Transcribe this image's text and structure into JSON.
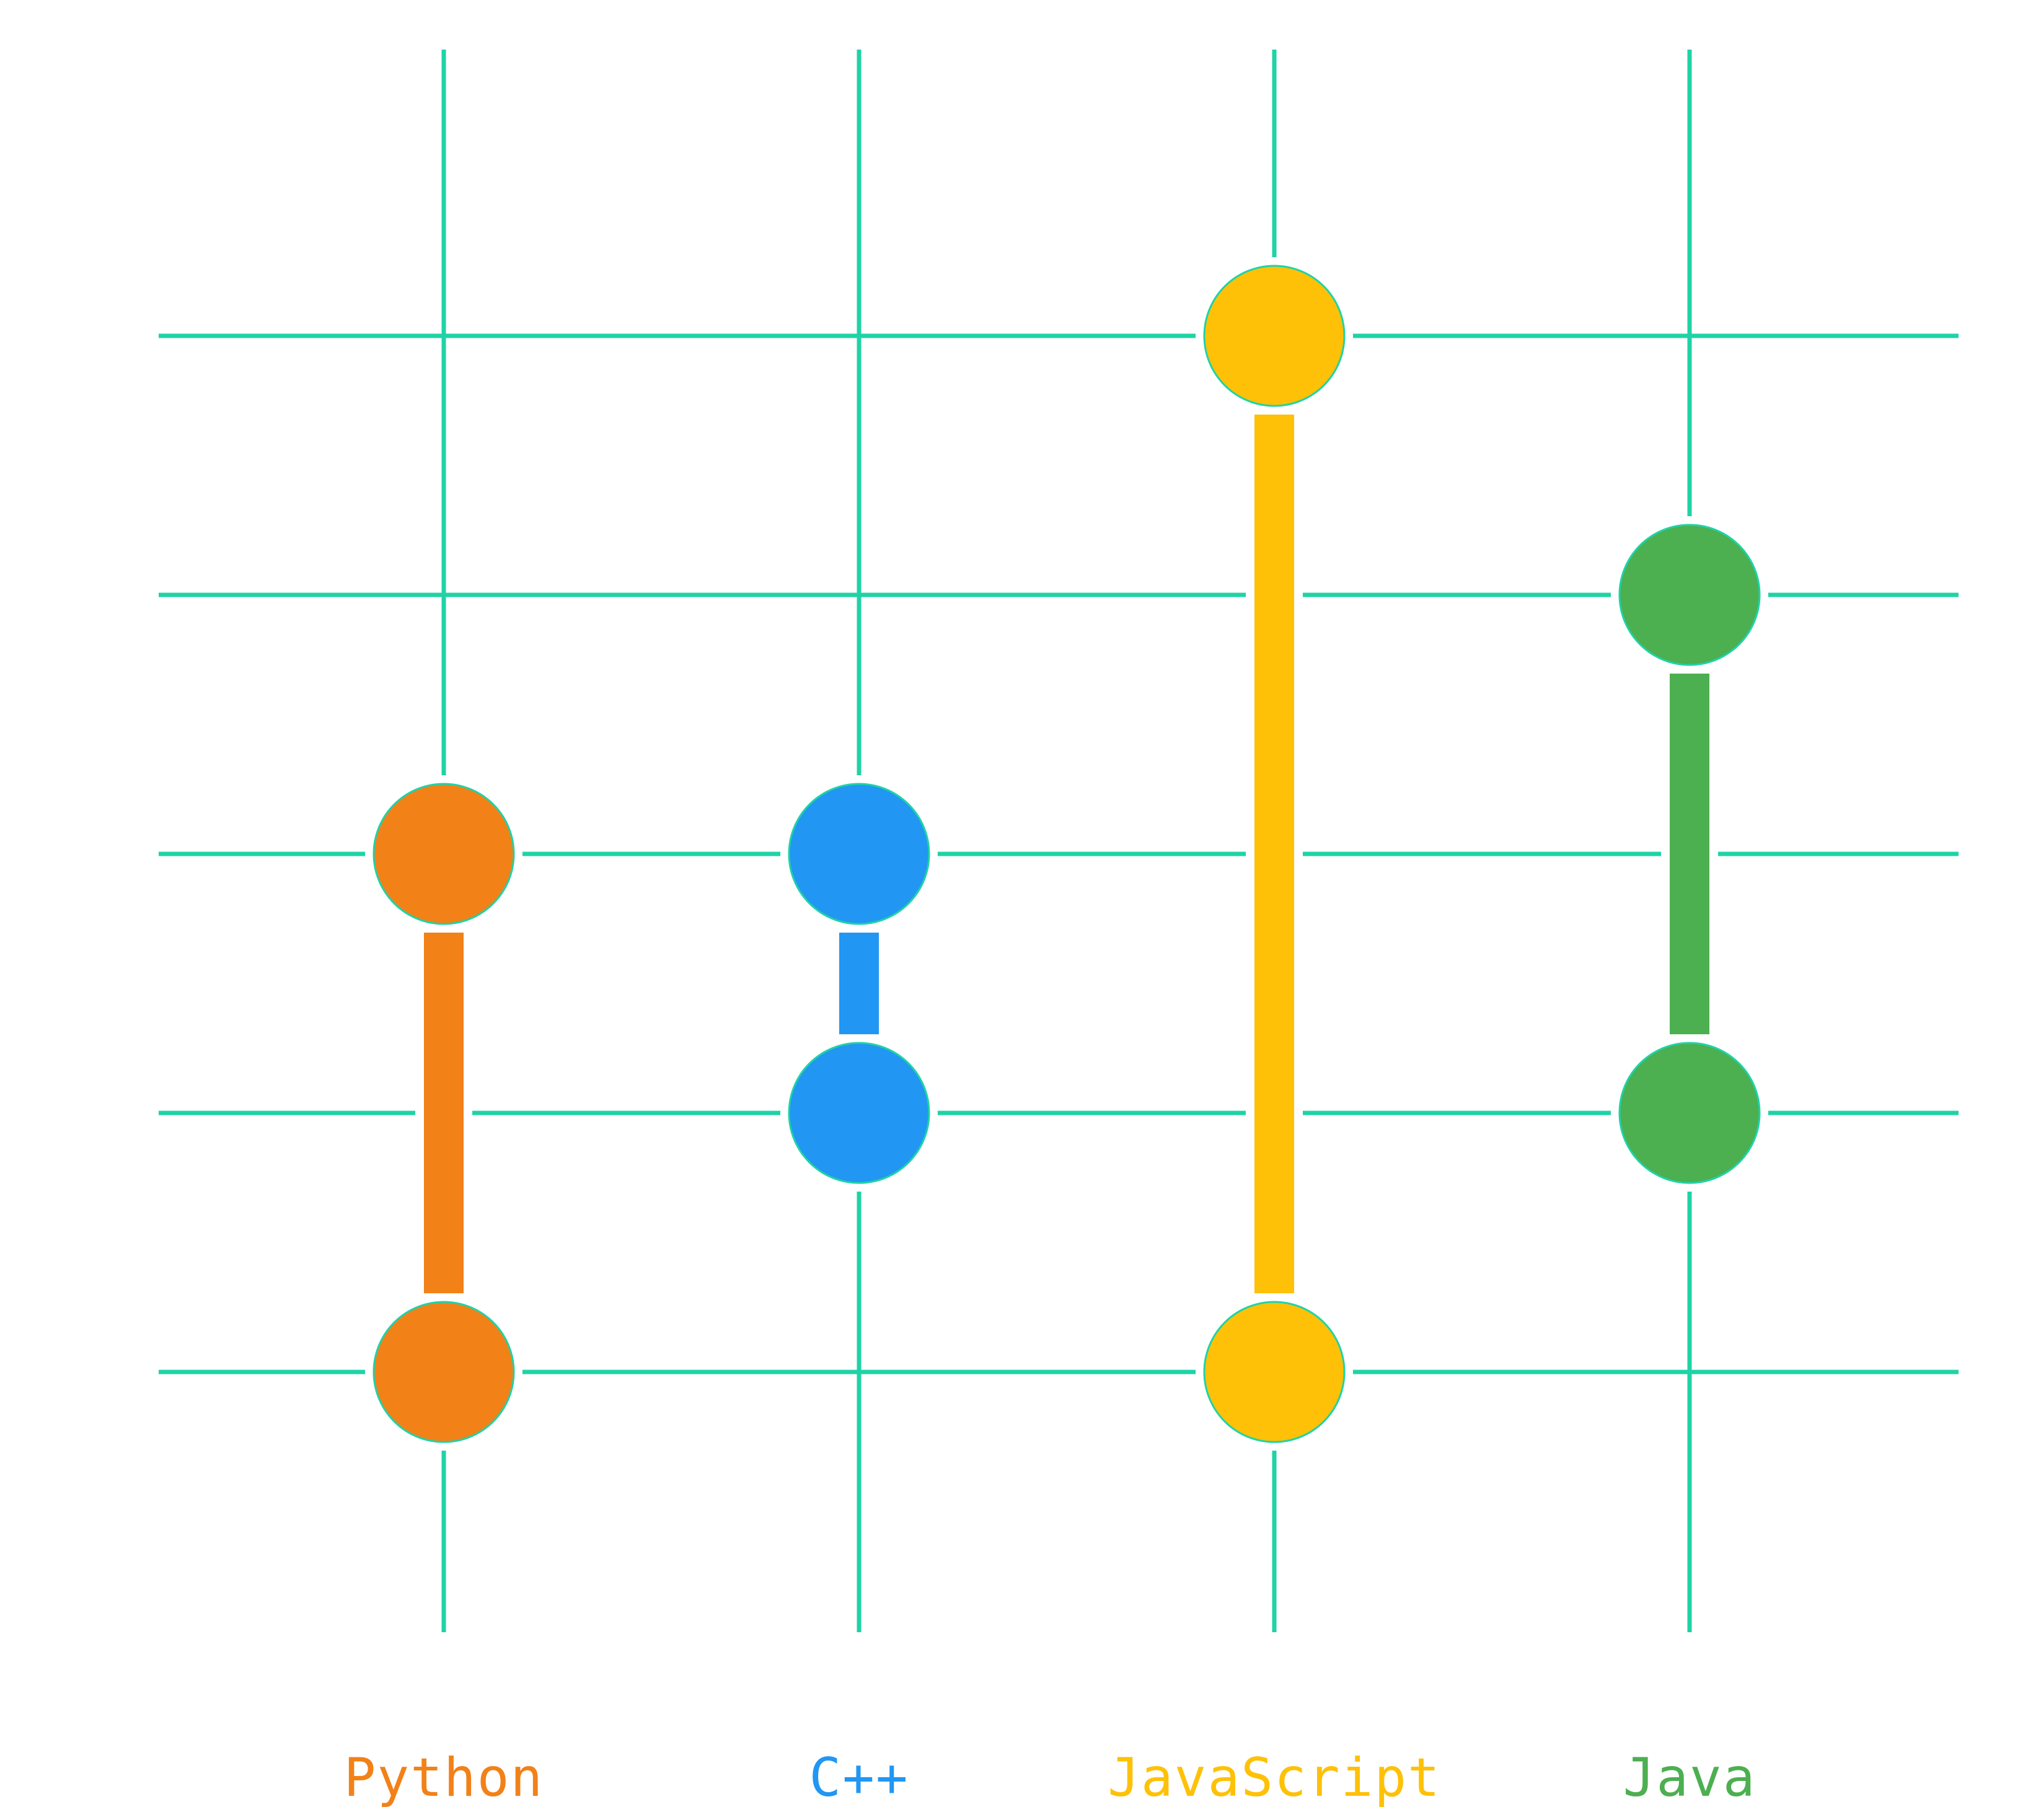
{
  "chart_data": {
    "type": "range",
    "title": "",
    "xlabel": "",
    "ylabel": "",
    "categories": [
      "Python",
      "C++",
      "JavaScript",
      "Java"
    ],
    "series": [
      {
        "category": "Python",
        "low": 1,
        "high": 3,
        "color": "#F28118"
      },
      {
        "category": "C++",
        "low": 2,
        "high": 3,
        "color": "#2196F3"
      },
      {
        "category": "JavaScript",
        "low": 1,
        "high": 5,
        "color": "#FEC107"
      },
      {
        "category": "Java",
        "low": 2,
        "high": 4,
        "color": "#4CAF50"
      }
    ],
    "ylim": [
      0,
      6
    ],
    "gridlines_y": [
      1,
      2,
      3,
      4,
      5
    ],
    "grid": true,
    "grid_color": "#1FD3A6",
    "background": "#FFFFFF",
    "legend": "none"
  }
}
